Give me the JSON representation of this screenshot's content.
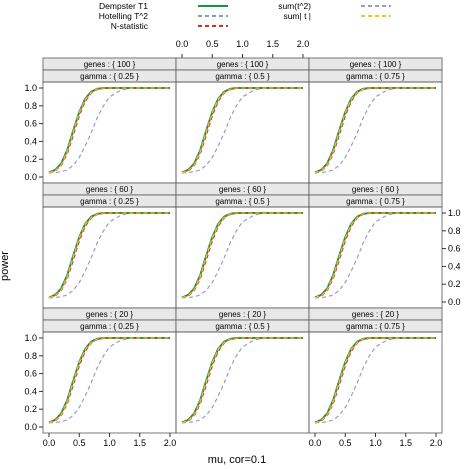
{
  "chart_data": {
    "type": "line",
    "title": "",
    "xlabel": "mu, cor=0.1",
    "ylabel": "power",
    "xlim": [
      0,
      2
    ],
    "ylim": [
      0,
      1
    ],
    "x_ticks": [
      "0.0",
      "0.5",
      "1.0",
      "1.5",
      "2.0"
    ],
    "y_ticks": [
      "0.0",
      "0.2",
      "0.4",
      "0.6",
      "0.8",
      "1.0"
    ],
    "legend": {
      "placement": "top",
      "entries": [
        {
          "label": "Dempster T1",
          "color": "#1a9641",
          "style": "solid"
        },
        {
          "label": "Hotelling T^2",
          "color": "#7fa7a0",
          "style": "dashed"
        },
        {
          "label": "N-statistic",
          "color": "#d7301f",
          "style": "dashed"
        },
        {
          "label": "sum(t^2)",
          "color": "#9e9ac8",
          "style": "dashed"
        },
        {
          "label": "sum| t |",
          "color": "#f0c419",
          "style": "dashed"
        }
      ]
    },
    "panel_rows": [
      {
        "genes": "genes : { 100 }"
      },
      {
        "genes": "genes : { 60 }"
      },
      {
        "genes": "genes : { 20 }"
      }
    ],
    "panel_cols": [
      {
        "gamma": "gamma : { 0.25 }"
      },
      {
        "gamma": "gamma : { 0.5 }"
      },
      {
        "gamma": "gamma : { 0.75 }"
      }
    ],
    "x": [
      0.0,
      0.1,
      0.2,
      0.3,
      0.4,
      0.5,
      0.6,
      0.7,
      0.8,
      0.9,
      1.0,
      1.2,
      1.4,
      1.6,
      1.8,
      2.0
    ],
    "series": [
      {
        "name": "Dempster T1",
        "values": [
          0.05,
          0.08,
          0.15,
          0.3,
          0.52,
          0.73,
          0.88,
          0.96,
          0.99,
          1.0,
          1.0,
          1.0,
          1.0,
          1.0,
          1.0,
          1.0
        ]
      },
      {
        "name": "Hotelling T^2",
        "values": [
          0.05,
          0.08,
          0.15,
          0.3,
          0.52,
          0.73,
          0.88,
          0.96,
          0.99,
          1.0,
          1.0,
          1.0,
          1.0,
          1.0,
          1.0,
          1.0
        ]
      },
      {
        "name": "N-statistic",
        "values": [
          0.05,
          0.07,
          0.13,
          0.27,
          0.48,
          0.7,
          0.86,
          0.95,
          0.99,
          1.0,
          1.0,
          1.0,
          1.0,
          1.0,
          1.0,
          1.0
        ]
      },
      {
        "name": "sum(t^2)",
        "values": [
          0.05,
          0.05,
          0.06,
          0.08,
          0.13,
          0.22,
          0.35,
          0.5,
          0.67,
          0.8,
          0.9,
          0.98,
          1.0,
          1.0,
          1.0,
          1.0
        ]
      },
      {
        "name": "sum| t |",
        "values": [
          0.05,
          0.07,
          0.13,
          0.28,
          0.5,
          0.72,
          0.87,
          0.95,
          0.99,
          1.0,
          1.0,
          1.0,
          1.0,
          1.0,
          1.0,
          1.0
        ]
      }
    ]
  }
}
